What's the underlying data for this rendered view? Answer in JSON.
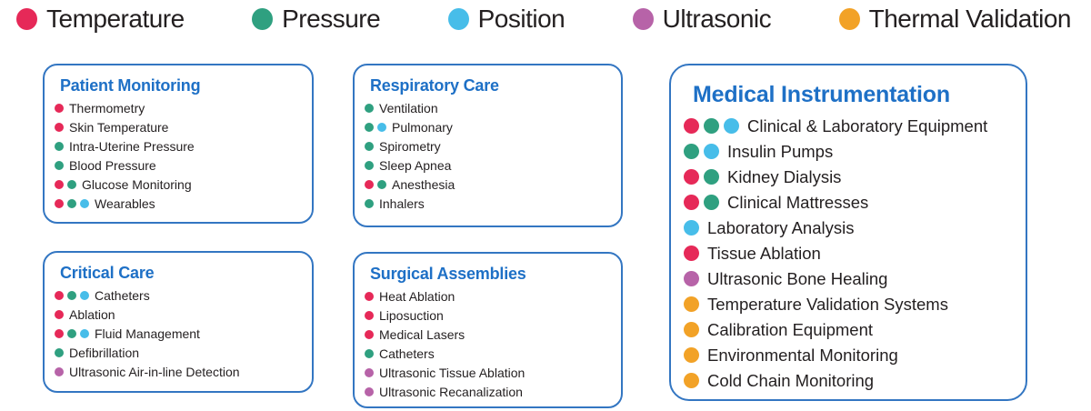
{
  "colors": {
    "sensors": {
      "temperature": "#e62958",
      "pressure": "#2fa080",
      "position": "#47bde9",
      "ultrasonic": "#b763a8",
      "thermal": "#f2a227"
    },
    "title_blue": "#1e70c6",
    "border_blue": "#3376c2",
    "text": "#231f20"
  },
  "legend": {
    "items": [
      {
        "key": "temperature",
        "label": "Temperature"
      },
      {
        "key": "pressure",
        "label": "Pressure"
      },
      {
        "key": "position",
        "label": "Position"
      },
      {
        "key": "ultrasonic",
        "label": "Ultrasonic"
      },
      {
        "key": "thermal",
        "label": "Thermal Validation"
      }
    ]
  },
  "boxes": [
    {
      "id": "patient-monitoring",
      "title": "Patient Monitoring",
      "size": "small",
      "items": [
        {
          "label": "Thermometry",
          "dots": [
            "temperature"
          ]
        },
        {
          "label": "Skin Temperature",
          "dots": [
            "temperature"
          ]
        },
        {
          "label": "Intra-Uterine Pressure",
          "dots": [
            "pressure"
          ]
        },
        {
          "label": "Blood Pressure",
          "dots": [
            "pressure"
          ]
        },
        {
          "label": "Glucose Monitoring",
          "dots": [
            "temperature",
            "pressure"
          ]
        },
        {
          "label": "Wearables",
          "dots": [
            "temperature",
            "pressure",
            "position"
          ]
        }
      ]
    },
    {
      "id": "critical-care",
      "title": "Critical Care",
      "size": "small",
      "items": [
        {
          "label": "Catheters",
          "dots": [
            "temperature",
            "pressure",
            "position"
          ]
        },
        {
          "label": "Ablation",
          "dots": [
            "temperature"
          ]
        },
        {
          "label": "Fluid Management",
          "dots": [
            "temperature",
            "pressure",
            "position"
          ]
        },
        {
          "label": "Defibrillation",
          "dots": [
            "pressure"
          ]
        },
        {
          "label": "Ultrasonic Air-in-line Detection",
          "dots": [
            "ultrasonic"
          ]
        }
      ]
    },
    {
      "id": "respiratory-care",
      "title": "Respiratory Care",
      "size": "small",
      "items": [
        {
          "label": "Ventilation",
          "dots": [
            "pressure"
          ]
        },
        {
          "label": "Pulmonary",
          "dots": [
            "pressure",
            "position"
          ]
        },
        {
          "label": "Spirometry",
          "dots": [
            "pressure"
          ]
        },
        {
          "label": "Sleep Apnea",
          "dots": [
            "pressure"
          ]
        },
        {
          "label": "Anesthesia",
          "dots": [
            "temperature",
            "pressure"
          ]
        },
        {
          "label": "Inhalers",
          "dots": [
            "pressure"
          ]
        }
      ]
    },
    {
      "id": "surgical-assemblies",
      "title": "Surgical Assemblies",
      "size": "small",
      "items": [
        {
          "label": "Heat Ablation",
          "dots": [
            "temperature"
          ]
        },
        {
          "label": "Liposuction",
          "dots": [
            "temperature"
          ]
        },
        {
          "label": "Medical Lasers",
          "dots": [
            "temperature"
          ]
        },
        {
          "label": "Catheters",
          "dots": [
            "pressure"
          ]
        },
        {
          "label": "Ultrasonic Tissue Ablation",
          "dots": [
            "ultrasonic"
          ]
        },
        {
          "label": "Ultrasonic Recanalization",
          "dots": [
            "ultrasonic"
          ]
        }
      ]
    },
    {
      "id": "medical-instrumentation",
      "title": "Medical Instrumentation",
      "size": "large",
      "items": [
        {
          "label": "Clinical & Laboratory Equipment",
          "dots": [
            "temperature",
            "pressure",
            "position"
          ]
        },
        {
          "label": "Insulin Pumps",
          "dots": [
            "pressure",
            "position"
          ]
        },
        {
          "label": "Kidney Dialysis",
          "dots": [
            "temperature",
            "pressure"
          ]
        },
        {
          "label": "Clinical Mattresses",
          "dots": [
            "temperature",
            "pressure"
          ]
        },
        {
          "label": "Laboratory Analysis",
          "dots": [
            "position"
          ]
        },
        {
          "label": "Tissue Ablation",
          "dots": [
            "temperature"
          ]
        },
        {
          "label": "Ultrasonic Bone Healing",
          "dots": [
            "ultrasonic"
          ]
        },
        {
          "label": "Temperature Validation Systems",
          "dots": [
            "thermal"
          ]
        },
        {
          "label": "Calibration Equipment",
          "dots": [
            "thermal"
          ]
        },
        {
          "label": "Environmental Monitoring",
          "dots": [
            "thermal"
          ]
        },
        {
          "label": "Cold Chain Monitoring",
          "dots": [
            "thermal"
          ]
        }
      ]
    }
  ]
}
